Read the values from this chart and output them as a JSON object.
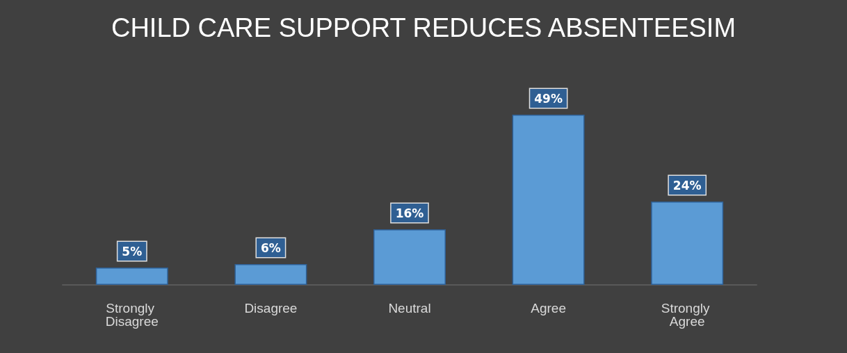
{
  "chart_data": {
    "type": "bar",
    "title": "CHILD CARE SUPPORT REDUCES ABSENTEESIM",
    "categories": [
      "Strongly Disagree",
      "Disagree",
      "Neutral",
      "Agree",
      "Strongly Agree"
    ],
    "values": [
      5,
      6,
      16,
      49,
      24
    ],
    "value_labels": [
      "5%",
      "6%",
      "16%",
      "49%",
      "24%"
    ],
    "color": "#5b9bd5"
  }
}
